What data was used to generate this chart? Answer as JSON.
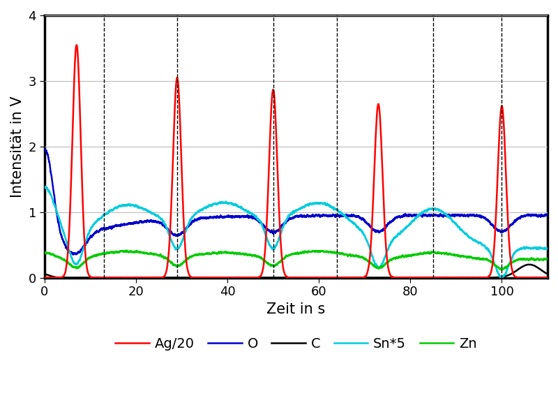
{
  "xlabel": "Zeit in s",
  "ylabel": "Intensität in V",
  "xlim": [
    0,
    110
  ],
  "ylim": [
    0,
    4
  ],
  "xticks": [
    0,
    20,
    40,
    60,
    80,
    100
  ],
  "yticks": [
    0,
    1,
    2,
    3,
    4
  ],
  "dashed_vlines": [
    13,
    29,
    50,
    64,
    85,
    100
  ],
  "legend_labels": [
    "Ag/20",
    "O",
    "C",
    "Sn*5",
    "Zn"
  ],
  "legend_colors": [
    "#ff0000",
    "#0000cc",
    "#000000",
    "#00ccdd",
    "#00cc00"
  ],
  "line_widths": [
    1.8,
    1.8,
    1.8,
    1.8,
    1.8
  ],
  "background_color": "#ffffff",
  "grid_color": "#bbbbbb",
  "axes_linewidth": 2.5,
  "figsize": [
    8.0,
    6.0
  ],
  "dpi": 100
}
